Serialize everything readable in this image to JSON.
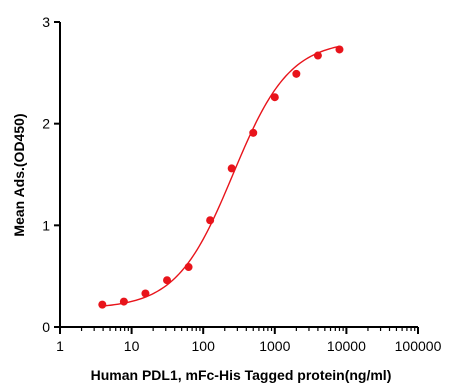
{
  "chart_data": {
    "type": "scatter",
    "title": "",
    "xlabel": "Human PDL1, mFc-His Tagged protein(ng/ml)",
    "ylabel": "Mean Ads.(OD450)",
    "x_scale": "log",
    "xlim": [
      1,
      100000
    ],
    "ylim": [
      0,
      3
    ],
    "x_ticks": [
      1,
      10,
      100,
      1000,
      10000,
      100000
    ],
    "x_tick_labels": [
      "1",
      "10",
      "100",
      "1000",
      "10000",
      "100000"
    ],
    "y_ticks": [
      0,
      1,
      2,
      3
    ],
    "y_tick_labels": [
      "0",
      "1",
      "2",
      "3"
    ],
    "grid": false,
    "legend": "none",
    "color": "#e8141b",
    "series": [
      {
        "x": [
          3.9,
          7.8,
          15.6,
          31.25,
          62.5,
          125,
          250,
          500,
          1000,
          2000,
          4000,
          8000
        ],
        "y": [
          0.22,
          0.25,
          0.33,
          0.46,
          0.59,
          1.05,
          1.56,
          1.91,
          2.26,
          2.49,
          2.67,
          2.73
        ]
      }
    ],
    "fit": {
      "model": "4PL",
      "bottom": 0.18,
      "top": 2.82,
      "ec50": 260,
      "hill": 1.1
    }
  }
}
